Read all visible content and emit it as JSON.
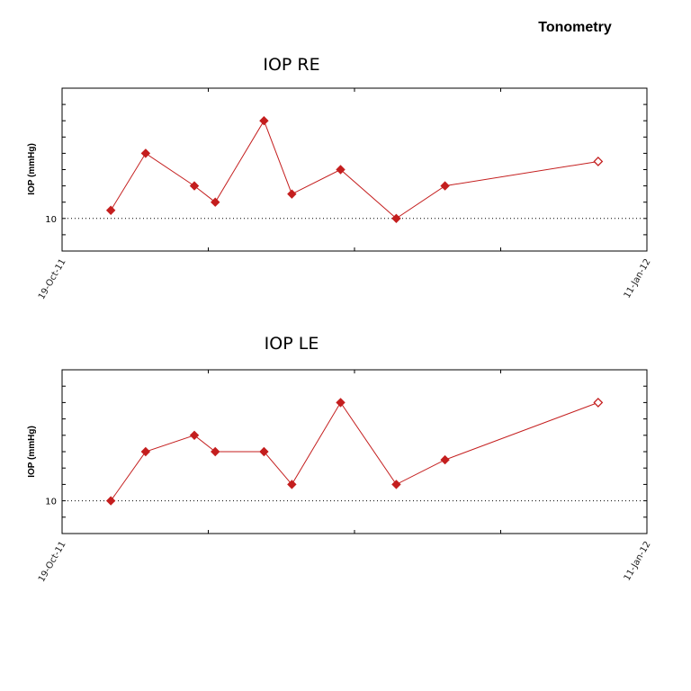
{
  "page": {
    "title": "Tonometry"
  },
  "colors": {
    "series": "#c41e1e",
    "axis": "#000000"
  },
  "chart_data": [
    {
      "type": "line",
      "title": "IOP RE",
      "ylabel": "IOP (mmHg)",
      "xlabel": "",
      "x_tick_labels": [
        "19-Oct-11",
        "11-Jan-12"
      ],
      "xlim": [
        "2011-10-19",
        "2012-01-11"
      ],
      "reference_line": {
        "y": 10,
        "label": "10",
        "style": "dotted"
      },
      "ylim": [
        8,
        18
      ],
      "grid": false,
      "legend": "none",
      "series": [
        {
          "x": [
            "2011-10-26",
            "2011-10-31",
            "2011-11-07",
            "2011-11-10",
            "2011-11-17",
            "2011-11-21",
            "2011-11-28",
            "2011-12-06",
            "2011-12-13",
            "2012-01-04"
          ],
          "y": [
            10.5,
            14,
            12,
            11,
            16,
            11.5,
            13,
            10,
            12,
            13.5
          ],
          "open_last_point": true
        }
      ]
    },
    {
      "type": "line",
      "title": "IOP LE",
      "ylabel": "IOP (mmHg)",
      "xlabel": "",
      "x_tick_labels": [
        "19-Oct-11",
        "11-Jan-12"
      ],
      "xlim": [
        "2011-10-19",
        "2012-01-11"
      ],
      "reference_line": {
        "y": 10,
        "label": "10",
        "style": "dotted"
      },
      "ylim": [
        8,
        18
      ],
      "grid": false,
      "legend": "none",
      "series": [
        {
          "x": [
            "2011-10-26",
            "2011-10-31",
            "2011-11-07",
            "2011-11-10",
            "2011-11-17",
            "2011-11-21",
            "2011-11-28",
            "2011-12-06",
            "2011-12-13",
            "2012-01-04"
          ],
          "y": [
            10,
            13,
            14,
            13,
            13,
            11,
            16,
            11,
            12.5,
            16
          ],
          "open_last_point": true
        }
      ]
    }
  ]
}
